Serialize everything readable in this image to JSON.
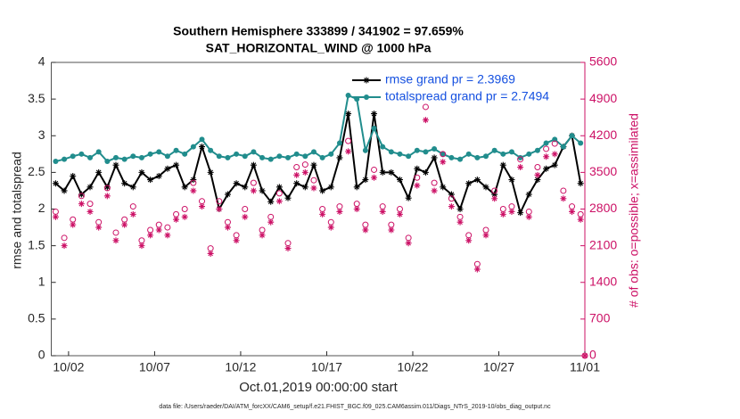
{
  "chart_data": {
    "type": "line",
    "title": "Southern Hemisphere 333899 / 341902 = 97.659%",
    "subtitle": "SAT_HORIZONTAL_WIND @ 1000 hPa",
    "x_label": "Oct.01,2019 00:00:00 start",
    "y_label": "rmse and totalspread",
    "y2_label": "# of obs: o=possible; x=assimilated",
    "footnote": "data file: /Users/raeder/DAI/ATM_forcXX/CAM6_setup/f.e21.FHIST_BGC.f09_025.CAM6assim.011/Diags_NTrS_2019-10/obs_diag_output.nc",
    "legend": "upper right",
    "x": [
      0.25,
      0.75,
      1.25,
      1.75,
      2.25,
      2.75,
      3.25,
      3.75,
      4.25,
      4.75,
      5.25,
      5.75,
      6.25,
      6.75,
      7.25,
      7.75,
      8.25,
      8.75,
      9.25,
      9.75,
      10.25,
      10.75,
      11.25,
      11.75,
      12.25,
      12.75,
      13.25,
      13.75,
      14.25,
      14.75,
      15.25,
      15.75,
      16.25,
      16.75,
      17.25,
      17.75,
      18.25,
      18.75,
      19.25,
      19.75,
      20.25,
      20.75,
      21.25,
      21.75,
      22.25,
      22.75,
      23.25,
      23.75,
      24.25,
      24.75,
      25.25,
      25.75,
      26.25,
      26.75,
      27.25,
      27.75,
      28.25,
      28.75,
      29.25,
      29.75,
      30.25,
      30.75,
      31
    ],
    "series": [
      {
        "name": "rmse grand pr = 2.3969",
        "color": "#000000",
        "marker": "asterisk",
        "line": true,
        "values": [
          2.35,
          2.25,
          2.45,
          2.2,
          2.3,
          2.5,
          2.3,
          2.6,
          2.35,
          2.3,
          2.5,
          2.4,
          2.45,
          2.55,
          2.6,
          2.3,
          2.4,
          2.85,
          2.5,
          2.0,
          2.2,
          2.35,
          2.3,
          2.6,
          2.25,
          2.1,
          2.3,
          2.15,
          2.35,
          2.3,
          2.6,
          2.25,
          2.3,
          2.7,
          3.3,
          2.3,
          2.4,
          3.3,
          2.5,
          2.5,
          2.4,
          2.15,
          2.55,
          2.5,
          2.7,
          2.3,
          2.2,
          2.0,
          2.35,
          2.4,
          2.3,
          2.2,
          2.6,
          2.4,
          1.95,
          2.2,
          2.4,
          2.55,
          2.6,
          2.85,
          3.0,
          2.35,
          null
        ]
      },
      {
        "name": "totalspread grand pr = 2.7494",
        "color": "#218d8d",
        "marker": "dot",
        "line": true,
        "values": [
          2.65,
          2.68,
          2.72,
          2.75,
          2.7,
          2.78,
          2.65,
          2.7,
          2.68,
          2.72,
          2.7,
          2.75,
          2.78,
          2.72,
          2.8,
          2.75,
          2.85,
          2.95,
          2.8,
          2.72,
          2.7,
          2.75,
          2.72,
          2.78,
          2.7,
          2.68,
          2.72,
          2.7,
          2.75,
          2.72,
          2.78,
          2.7,
          2.75,
          2.9,
          3.55,
          3.5,
          2.8,
          3.1,
          2.85,
          2.78,
          2.75,
          2.72,
          2.8,
          2.78,
          2.82,
          2.75,
          2.7,
          2.68,
          2.75,
          2.7,
          2.72,
          2.8,
          2.75,
          2.78,
          2.7,
          2.75,
          2.8,
          2.9,
          2.95,
          2.85,
          3.0,
          2.9,
          null
        ]
      },
      {
        "color": "#cc1166",
        "marker": "circle",
        "line": false,
        "axis": "y2",
        "values": [
          2750,
          2250,
          2600,
          3050,
          2900,
          2550,
          3200,
          2350,
          2600,
          2850,
          2200,
          2400,
          2500,
          2450,
          2700,
          2800,
          3300,
          2950,
          2050,
          2950,
          2550,
          2300,
          2800,
          3300,
          2400,
          2650,
          3100,
          2150,
          3600,
          3650,
          3350,
          2800,
          2550,
          2850,
          4100,
          2900,
          2500,
          3550,
          2850,
          2500,
          2800,
          2250,
          3400,
          4750,
          3300,
          3850,
          3000,
          2650,
          2300,
          1750,
          2400,
          3150,
          2800,
          2850,
          3750,
          2750,
          3600,
          3950,
          4050,
          3150,
          2850,
          2700,
          0
        ]
      },
      {
        "color": "#cc1166",
        "marker": "asterisk",
        "line": false,
        "axis": "y2",
        "values": [
          2650,
          2100,
          2500,
          2900,
          2750,
          2450,
          3050,
          2200,
          2500,
          2700,
          2100,
          2300,
          2400,
          2300,
          2600,
          2650,
          3150,
          2850,
          1950,
          2800,
          2450,
          2200,
          2650,
          3150,
          2300,
          2550,
          2950,
          2050,
          3450,
          3500,
          3200,
          2700,
          2450,
          2750,
          3900,
          2800,
          2400,
          3400,
          2750,
          2400,
          2700,
          2150,
          3250,
          4500,
          3150,
          3700,
          2850,
          2550,
          2200,
          1650,
          2300,
          3000,
          2700,
          2750,
          3600,
          2650,
          3450,
          3800,
          3850,
          3000,
          2750,
          2600,
          0
        ]
      }
    ],
    "xlim": [
      0,
      31
    ],
    "xticks": [
      {
        "value": 1,
        "label": "10/02"
      },
      {
        "value": 6,
        "label": "10/07"
      },
      {
        "value": 11,
        "label": "10/12"
      },
      {
        "value": 16,
        "label": "10/17"
      },
      {
        "value": 21,
        "label": "10/22"
      },
      {
        "value": 26,
        "label": "10/27"
      },
      {
        "value": 31,
        "label": "11/01"
      }
    ],
    "ylim": [
      0,
      4
    ],
    "yticks": [
      0,
      0.5,
      1,
      1.5,
      2,
      2.5,
      3,
      3.5,
      4
    ],
    "y2lim": [
      0,
      5600
    ],
    "y2ticks": [
      0,
      700,
      1400,
      2100,
      2800,
      3500,
      4200,
      4900,
      5600
    ],
    "y2color": "#cc1166",
    "legend_text_color": "#1550e0",
    "grid": false
  }
}
